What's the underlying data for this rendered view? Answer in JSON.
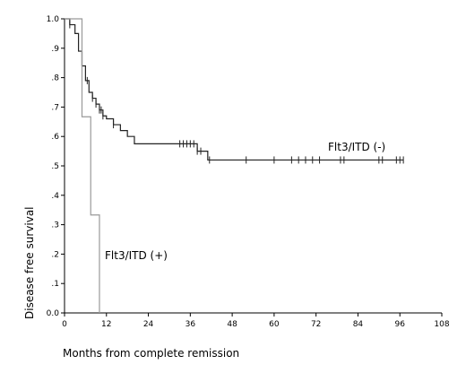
{
  "chart_data": {
    "type": "line",
    "subtype": "kaplan-meier step curve",
    "xlabel": "Months from complete remission",
    "ylabel": "Disease free survival",
    "xlim": [
      0,
      108
    ],
    "ylim": [
      0.0,
      1.0
    ],
    "x_ticks": [
      0,
      12,
      24,
      36,
      48,
      60,
      72,
      84,
      96,
      108
    ],
    "x_tick_labels": [
      "0",
      "12",
      "24",
      "36",
      "48",
      "60",
      "72",
      "84",
      "96",
      "108"
    ],
    "y_ticks": [
      0.0,
      0.1,
      0.2,
      0.3,
      0.4,
      0.5,
      0.6,
      0.7,
      0.8,
      0.9,
      1.0
    ],
    "y_tick_labels": [
      "0.0",
      ".1",
      ".2",
      ".3",
      ".4",
      ".5",
      ".6",
      ".7",
      ".8",
      ".9",
      "1.0"
    ],
    "grid": false,
    "series": [
      {
        "name": "Flt3/ITD (-)",
        "color": "#222222",
        "steps": [
          [
            0,
            1.0
          ],
          [
            1.5,
            0.98
          ],
          [
            3,
            0.95
          ],
          [
            4,
            0.89
          ],
          [
            5,
            0.84
          ],
          [
            6,
            0.79
          ],
          [
            7,
            0.75
          ],
          [
            8,
            0.73
          ],
          [
            9,
            0.71
          ],
          [
            10,
            0.69
          ],
          [
            11,
            0.67
          ],
          [
            12,
            0.66
          ],
          [
            14,
            0.64
          ],
          [
            16,
            0.62
          ],
          [
            18,
            0.6
          ],
          [
            20,
            0.575
          ],
          [
            38,
            0.55
          ],
          [
            41,
            0.52
          ],
          [
            97,
            0.52
          ]
        ],
        "censored": [
          1.5,
          6.5,
          8,
          9,
          10,
          10.5,
          11,
          14,
          33,
          34,
          35,
          36,
          37,
          38,
          39,
          41.5,
          52,
          60,
          65,
          67,
          69,
          71,
          73,
          79,
          80,
          90,
          91,
          95,
          96,
          97
        ]
      },
      {
        "name": "Flt3/ITD (+)",
        "color": "#999999",
        "steps": [
          [
            0,
            1.0
          ],
          [
            5,
            1.0
          ],
          [
            5,
            0.667
          ],
          [
            7.5,
            0.667
          ],
          [
            7.5,
            0.333
          ],
          [
            10,
            0.333
          ],
          [
            10,
            0.0
          ]
        ],
        "censored": []
      }
    ],
    "labels": {
      "neg": "Flt3/ITD (-)",
      "pos": "Flt3/ITD (+)"
    }
  }
}
